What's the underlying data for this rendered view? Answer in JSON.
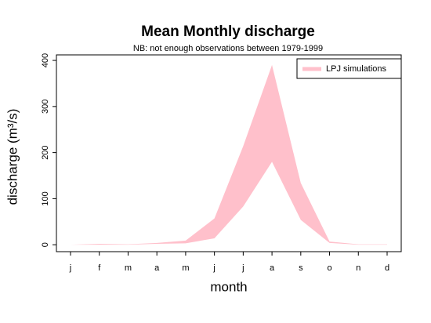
{
  "chart_data": {
    "type": "band",
    "title": "Mean Monthly discharge",
    "subtitle": "NB: not enough observations between 1979-1999",
    "xlabel": "month",
    "ylabel": "discharge (m³/s)",
    "categories": [
      "j",
      "f",
      "m",
      "a",
      "m",
      "j",
      "j",
      "a",
      "s",
      "o",
      "n",
      "d"
    ],
    "series": [
      {
        "name": "LPJ simulations",
        "color": "#ffc0cb",
        "upper": [
          0,
          2,
          1,
          4,
          9,
          57,
          214,
          390,
          134,
          7,
          1,
          1
        ],
        "lower": [
          0,
          0,
          0,
          2,
          3,
          14,
          83,
          180,
          54,
          4,
          0,
          0
        ]
      }
    ],
    "ylim": [
      -15,
      412
    ],
    "yticks": [
      0,
      100,
      200,
      300,
      400
    ],
    "legend": "top-right"
  }
}
